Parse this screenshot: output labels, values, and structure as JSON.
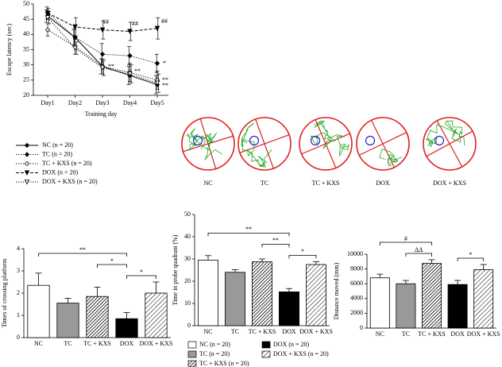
{
  "chart_data": [
    {
      "type": "line",
      "xlabel": "Training day",
      "ylabel": "Escape latency (sec)",
      "categories": [
        "Day1",
        "Day2",
        "Day3",
        "Day4",
        "Day5"
      ],
      "ylim": [
        20,
        50
      ],
      "yticks": [
        20,
        25,
        30,
        35,
        40,
        45,
        50
      ],
      "series": [
        {
          "name": "NC (n = 20)",
          "color": "#000000",
          "dash": "solid",
          "marker": "diamond",
          "filled": true,
          "values": [
            46,
            39,
            29.5,
            26.5,
            23.5
          ],
          "errors": [
            2,
            2.5,
            2.5,
            3,
            3
          ]
        },
        {
          "name": "TC (n = 20)",
          "color": "#000000",
          "dash": "dotted",
          "marker": "diamond",
          "filled": true,
          "values": [
            47,
            39,
            33.5,
            33,
            30.5
          ],
          "errors": [
            2,
            3,
            3.5,
            3,
            3
          ]
        },
        {
          "name": "TC + KXS (n = 20)",
          "color": "#000000",
          "dash": "dotted",
          "marker": "diamond",
          "filled": false,
          "values": [
            41.5,
            36,
            29.5,
            27.5,
            25
          ],
          "errors": [
            2,
            2.5,
            2.5,
            3,
            3
          ]
        },
        {
          "name": "DOX (n = 20)",
          "color": "#000000",
          "dash": "dashed",
          "marker": "triangle",
          "filled": true,
          "values": [
            47,
            42.5,
            41.5,
            41,
            42
          ],
          "errors": [
            1.5,
            3,
            3,
            3,
            3.5
          ]
        },
        {
          "name": "DOX + KXS (n = 20)",
          "color": "#000000",
          "dash": "dotted",
          "marker": "triangle",
          "filled": false,
          "values": [
            45.5,
            35.5,
            29,
            27,
            24
          ],
          "errors": [
            2,
            2,
            2.5,
            3,
            3
          ]
        }
      ],
      "annotations": [
        "##",
        "##",
        "##",
        "*",
        "**",
        "**",
        "**",
        "**"
      ]
    },
    {
      "type": "bar",
      "ylabel": "Times of crossing platform",
      "categories": [
        "NC",
        "TC",
        "TC + KXS",
        "DOX",
        "DOX + KXS"
      ],
      "values": [
        2.35,
        1.55,
        1.85,
        0.85,
        2.0
      ],
      "errors": [
        0.55,
        0.22,
        0.42,
        0.28,
        0.5
      ],
      "colors": [
        "#ffffff",
        "#999999",
        "#ffffff",
        "#000000",
        "#ffffff"
      ],
      "hatch": [
        false,
        false,
        true,
        false,
        true
      ],
      "ylim": [
        0,
        4
      ],
      "yticks": [
        0,
        1,
        2,
        3,
        4
      ],
      "brackets": [
        {
          "from": 3,
          "to": 4,
          "label": "*"
        },
        {
          "from": 2,
          "to": 3,
          "label": "*"
        },
        {
          "from": 0,
          "to": 3,
          "label": "**"
        }
      ]
    },
    {
      "type": "bar",
      "ylabel": "Time in probe quadrant (%)",
      "categories": [
        "NC",
        "TC",
        "TC + KXS",
        "DOX",
        "DOX + KXS"
      ],
      "values": [
        29.5,
        24,
        28.7,
        15.2,
        27.5
      ],
      "errors": [
        2,
        1.2,
        1.3,
        1.5,
        1.3
      ],
      "colors": [
        "#ffffff",
        "#999999",
        "#ffffff",
        "#000000",
        "#ffffff"
      ],
      "hatch": [
        false,
        false,
        true,
        false,
        true
      ],
      "ylim": [
        0,
        50
      ],
      "yticks": [
        0,
        10,
        20,
        30,
        40,
        50
      ],
      "brackets": [
        {
          "from": 3,
          "to": 4,
          "label": "*"
        },
        {
          "from": 2,
          "to": 3,
          "label": "**"
        },
        {
          "from": 0,
          "to": 3,
          "label": "**"
        }
      ],
      "legend": [
        "NC (n = 20)",
        "TC (n = 20)",
        "TC + KXS (n = 20)",
        "DOX (n = 20)",
        "DOX + KXS (n = 20)"
      ]
    },
    {
      "type": "bar",
      "ylabel": "Distance moved (mm)",
      "categories": [
        "NC",
        "TC",
        "TC + KXS",
        "DOX",
        "DOX + KXS"
      ],
      "values": [
        6800,
        6000,
        8750,
        5900,
        7900
      ],
      "errors": [
        500,
        450,
        500,
        550,
        700
      ],
      "colors": [
        "#ffffff",
        "#999999",
        "#ffffff",
        "#000000",
        "#ffffff"
      ],
      "hatch": [
        false,
        false,
        true,
        false,
        true
      ],
      "ylim": [
        0,
        10000
      ],
      "yticks": [
        0,
        2000,
        4000,
        6000,
        8000,
        10000
      ],
      "brackets": [
        {
          "from": 3,
          "to": 4,
          "label": "*"
        },
        {
          "from": 1,
          "to": 2,
          "label": "ΔΔ"
        },
        {
          "from": 0,
          "to": 2,
          "label": "#"
        }
      ]
    }
  ],
  "swim_paths": {
    "labels": [
      "NC",
      "TC",
      "TC + KXS",
      "DOX",
      "DOX + KXS"
    ]
  }
}
